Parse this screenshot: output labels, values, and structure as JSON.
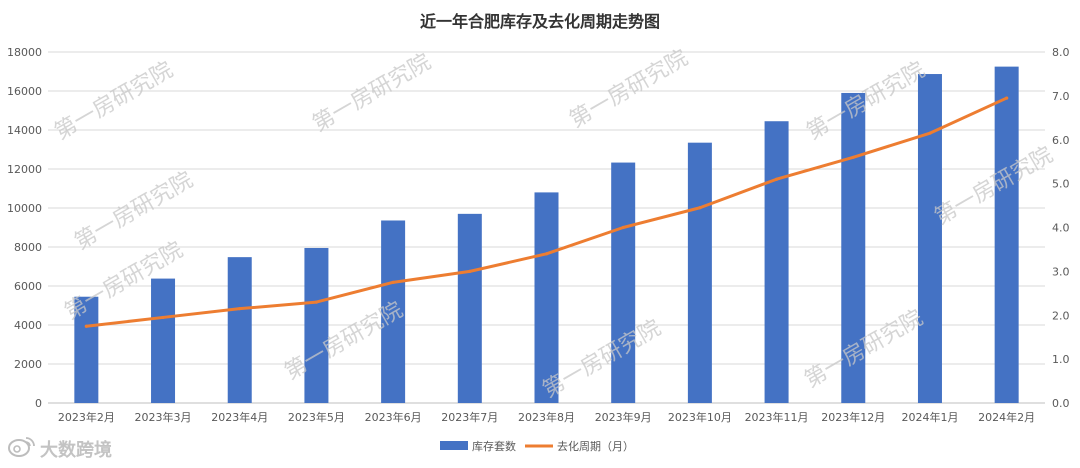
{
  "chart_data": {
    "type": "bar+line",
    "title": "近一年合肥库存及去化周期走势图",
    "categories": [
      "2023年2月",
      "2023年3月",
      "2023年4月",
      "2023年5月",
      "2023年6月",
      "2023年7月",
      "2023年8月",
      "2023年9月",
      "2023年10月",
      "2023年11月",
      "2023年12月",
      "2024年1月",
      "2024年2月"
    ],
    "series": [
      {
        "name": "库存套数",
        "type": "bar",
        "axis": "left",
        "color": "#4472C4",
        "values": [
          5450,
          6380,
          7480,
          7950,
          9360,
          9700,
          10800,
          12330,
          13350,
          14450,
          15900,
          16870,
          17250
        ]
      },
      {
        "name": "去化周期（月）",
        "type": "line",
        "axis": "right",
        "color": "#ED7D31",
        "values": [
          1.75,
          1.95,
          2.15,
          2.3,
          2.75,
          3.0,
          3.4,
          4.0,
          4.45,
          5.1,
          5.6,
          6.15,
          6.95
        ]
      }
    ],
    "y_left": {
      "min": 0,
      "max": 18000,
      "step": 2000,
      "ticks": [
        "0",
        "2000",
        "4000",
        "6000",
        "8000",
        "10000",
        "12000",
        "14000",
        "16000",
        "18000"
      ]
    },
    "y_right": {
      "min": 0,
      "max": 8,
      "step": 1,
      "ticks": [
        "0.0",
        "1.0",
        "2.0",
        "3.0",
        "4.0",
        "5.0",
        "6.0",
        "7.0",
        "8.0"
      ]
    },
    "grid": true,
    "legend": "bottom-center"
  },
  "watermarks": [
    "第一房研究院",
    "第一房研究院",
    "第一房研究院",
    "第一房研究院",
    "第一房研究院",
    "第一房研究院",
    "第一房研究院",
    "第一房研究院",
    "第一房研究院",
    "第一房研究院"
  ],
  "brand": {
    "icon": "weibo-logo-icon",
    "text": "大数跨境"
  }
}
